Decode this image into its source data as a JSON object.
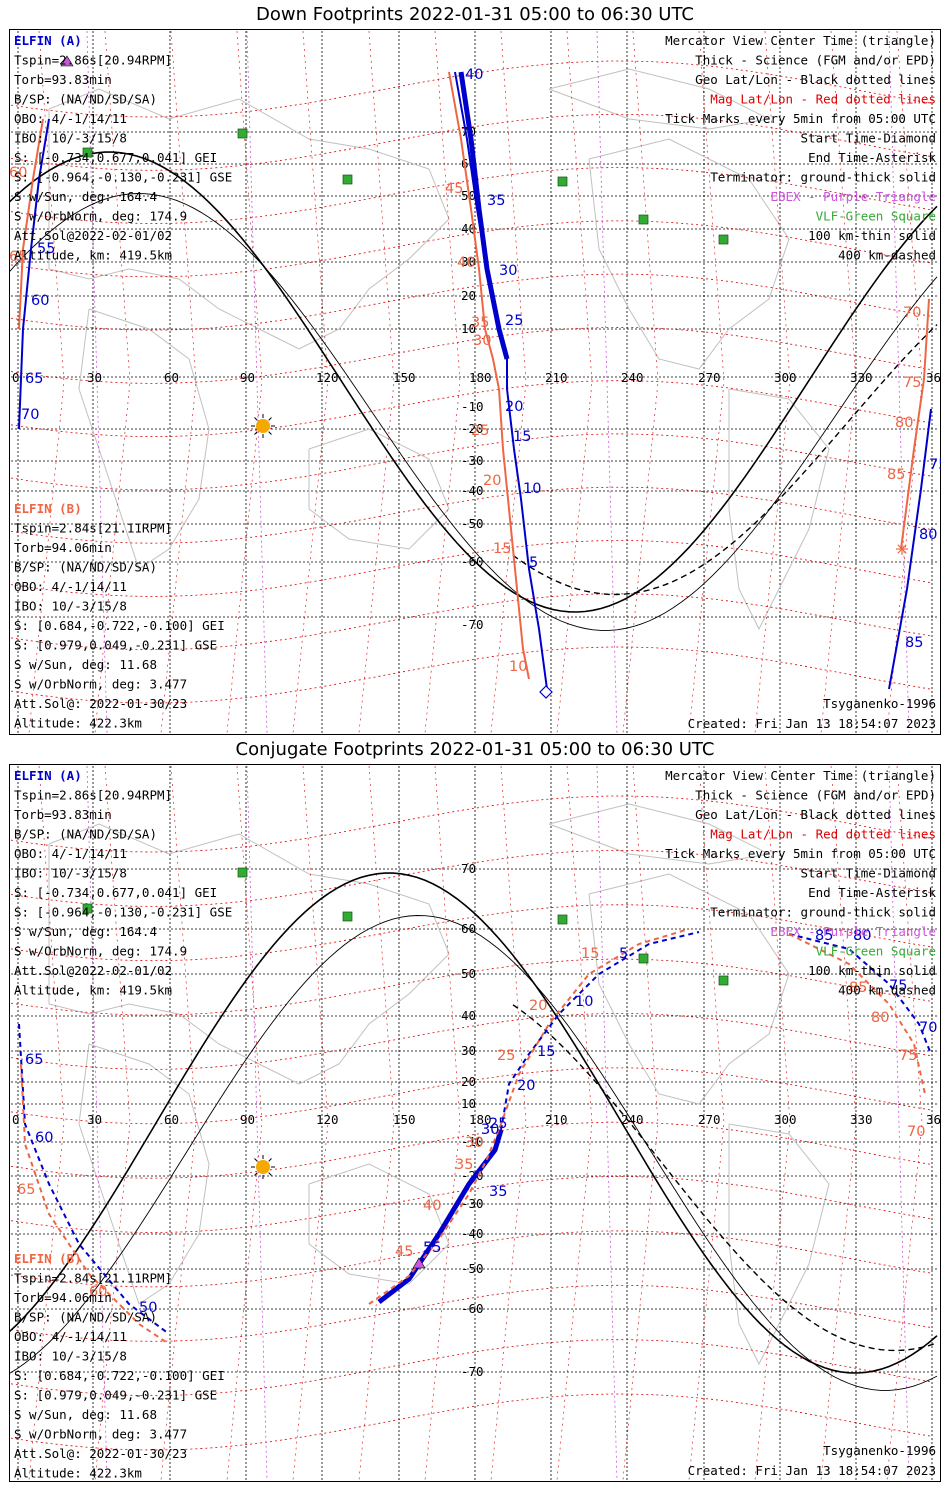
{
  "colors": {
    "elfin_a": "#0000cc",
    "elfin_b": "#ee6644",
    "mag_grid": "#dd0000",
    "ebex": "#cc55dd",
    "vlf": "#33aa33",
    "sun": "#f5a800"
  },
  "panels": [
    {
      "id": "down",
      "title": "Down Footprints 2022-01-31 05:00 to 06:30 UTC",
      "lon_ticks": [
        "0",
        "30",
        "60",
        "90",
        "120",
        "150",
        "180",
        "210",
        "240",
        "270",
        "300",
        "330",
        "360"
      ],
      "lat_ticks": [
        "70",
        "60",
        "50",
        "40",
        "30",
        "20",
        "10",
        "-10",
        "-20",
        "-30",
        "-40",
        "-50",
        "-60",
        "-70"
      ],
      "elfin_a": {
        "lines": [
          "ELFIN (A)",
          "Tspin=2.86s[20.94RPM]",
          "Torb=93.83min",
          "B/SP: (NA/ND/SD/SA)",
          "OBO: 4/-1/14/11",
          "IBO: 10/-3/15/8",
          "S: [-0.734,0.677,0.041] GEI",
          "S: [-0.964,-0.130,-0.231] GSE",
          "S w/Sun, deg: 164.4",
          "S w/OrbNorm, deg: 174.9",
          "Att.Sol@2022-02-01/02",
          "Altitude, km: 419.5km"
        ]
      },
      "elfin_b": {
        "lines": [
          "ELFIN (B)",
          "Tspin=2.84s[21.11RPM]",
          "Torb=94.06min",
          "B/SP: (NA/ND/SD/SA)",
          "OBO: 4/-1/14/11",
          "IBO: 10/-3/15/8",
          "S: [0.684,-0.722,-0.100] GEI",
          "S: [0.979,0.049,-0.231] GSE",
          "S w/Sun, deg: 11.68",
          "S w/OrbNorm, deg: 3.477",
          "Att.Sol@: 2022-01-30/23",
          "Altitude: 422.3km"
        ]
      },
      "legend": [
        "Mercator View Center Time (triangle)",
        "Thick - Science (FGM and/or EPD)",
        "Geo Lat/Lon - Black dotted lines",
        "Mag Lat/Lon - Red dotted lines",
        "Tick Marks every 5min from 05:00 UTC",
        "Start Time-Diamond",
        "End Time-Asterisk",
        "Terminator: ground-thick solid",
        "EBEX - Purple Triangle",
        "VLF-Green Square",
        "100 km-thin solid",
        "400 km-dashed"
      ],
      "model": "Tsyganenko-1996",
      "created": "Created: Fri Jan 13 18:54:07 2023",
      "a_labels": [
        "40",
        "35",
        "30",
        "25",
        "20",
        "15",
        "10",
        "5",
        "55",
        "60",
        "65",
        "70",
        "75",
        "80",
        "85"
      ],
      "b_labels": [
        "45",
        "40",
        "35",
        "30",
        "25",
        "20",
        "15",
        "10",
        "60",
        "65",
        "70",
        "75",
        "80",
        "85"
      ]
    },
    {
      "id": "conj",
      "title": "Conjugate Footprints 2022-01-31 05:00 to 06:30 UTC",
      "lon_ticks": [
        "0",
        "30",
        "60",
        "90",
        "120",
        "150",
        "180",
        "210",
        "240",
        "270",
        "300",
        "330",
        "360"
      ],
      "lat_ticks": [
        "70",
        "60",
        "50",
        "40",
        "30",
        "20",
        "10",
        "-10",
        "-20",
        "-30",
        "-40",
        "-50",
        "-60",
        "-70"
      ],
      "elfin_a": {
        "lines": [
          "ELFIN (A)",
          "Tspin=2.86s[20.94RPM]",
          "Torb=93.83min",
          "B/SP: (NA/ND/SD/SA)",
          "OBO: 4/-1/14/11",
          "IBO: 10/-3/15/8",
          "S: [-0.734,0.677,0.041] GEI",
          "S: [-0.964,-0.130,-0.231] GSE",
          "S w/Sun, deg: 164.4",
          "S w/OrbNorm, deg: 174.9",
          "Att.Sol@2022-02-01/02",
          "Altitude, km: 419.5km"
        ]
      },
      "elfin_b": {
        "lines": [
          "ELFIN (B)",
          "Tspin=2.84s[21.11RPM]",
          "Torb=94.06min",
          "B/SP: (NA/ND/SD/SA)",
          "OBO: 4/-1/14/11",
          "IBO: 10/-3/15/8",
          "S: [0.684,-0.722,-0.100] GEI",
          "S: [0.979,0.049,-0.231] GSE",
          "S w/Sun, deg: 11.68",
          "S w/OrbNorm, deg: 3.477",
          "Att.Sol@: 2022-01-30/23",
          "Altitude: 422.3km"
        ]
      },
      "legend": [
        "Mercator View Center Time (triangle)",
        "Thick - Science (FGM and/or EPD)",
        "Geo Lat/Lon - Black dotted lines",
        "Mag Lat/Lon - Red dotted lines",
        "Tick Marks every 5min from 05:00 UTC",
        "Start Time-Diamond",
        "End Time-Asterisk",
        "Terminator: ground-thick solid",
        "EBEX - Purple Triangle",
        "VLF-Green Square",
        "100 km-thin solid",
        "400 km-dashed"
      ],
      "model": "Tsyganenko-1996",
      "created": "Created: Fri Jan 13 18:54:07 2023",
      "a_labels": [
        "5",
        "10",
        "15",
        "20",
        "25",
        "30",
        "35",
        "55",
        "50",
        "60",
        "65",
        "70",
        "75",
        "80",
        "85"
      ],
      "b_labels": [
        "15",
        "20",
        "25",
        "30",
        "35",
        "40",
        "45",
        "60",
        "65",
        "70",
        "75",
        "80",
        "85"
      ]
    }
  ]
}
